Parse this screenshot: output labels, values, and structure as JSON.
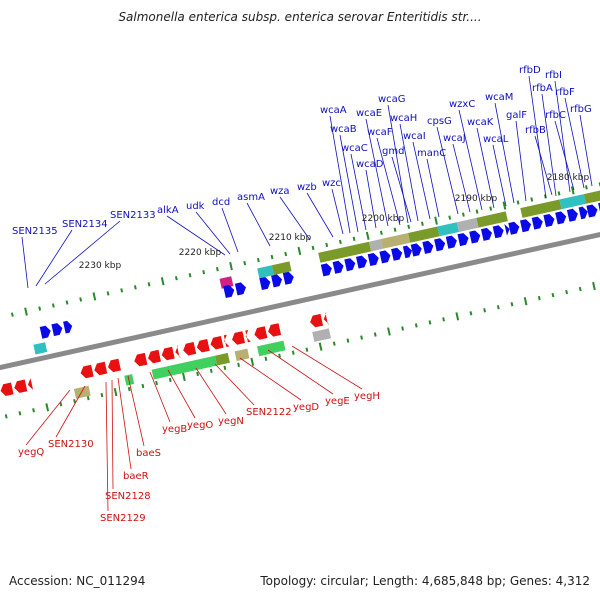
{
  "title": "Salmonella enterica subsp. enterica serovar Enteritidis str....",
  "accession": "Accession: NC_011294",
  "topology": "Topology: circular; Length: 4,685,848 bp; Genes: 4,312",
  "scale_ticks": [
    "2230 kbp",
    "2220 kbp",
    "2210 kbp",
    "2200 kbp",
    "2190 kbp",
    "2180 kbp"
  ],
  "forward_genes": [
    "SEN2135",
    "SEN2134",
    "SEN2133",
    "alkA",
    "udk",
    "dcd",
    "asmA",
    "wza",
    "wzb",
    "wzc",
    "wcaA",
    "wcaB",
    "wcaC",
    "wcaD",
    "wcaE",
    "wcaF",
    "wcaG",
    "wcaH",
    "gmd",
    "wcaI",
    "manC",
    "cpsG",
    "wcaJ",
    "wzxC",
    "wcaK",
    "wcaL",
    "wcaM",
    "galF",
    "rfbD",
    "rfbA",
    "rfbB",
    "rfbI",
    "rfbC",
    "rfbF",
    "rfbG"
  ],
  "reverse_genes": [
    "yegQ",
    "SEN2130",
    "SEN2129",
    "SEN2128",
    "baeR",
    "baeS",
    "yegB",
    "yegO",
    "yegN",
    "SEN2122",
    "yegD",
    "yegE",
    "yegH"
  ],
  "colors": {
    "forward_label": "#1010c0",
    "reverse_label": "#d01010",
    "forward_arrow": "#0a0ae6",
    "reverse_arrow": "#e81010",
    "backbone": "#8a8a8a",
    "tick_mark": "#2a8a2a",
    "cog_olive": "#7a9a2a",
    "cog_teal": "#30c0c0",
    "cog_green": "#40d060",
    "cog_gray": "#b0b0b0",
    "cog_khaki": "#b8b070",
    "cog_magenta": "#d02080"
  }
}
